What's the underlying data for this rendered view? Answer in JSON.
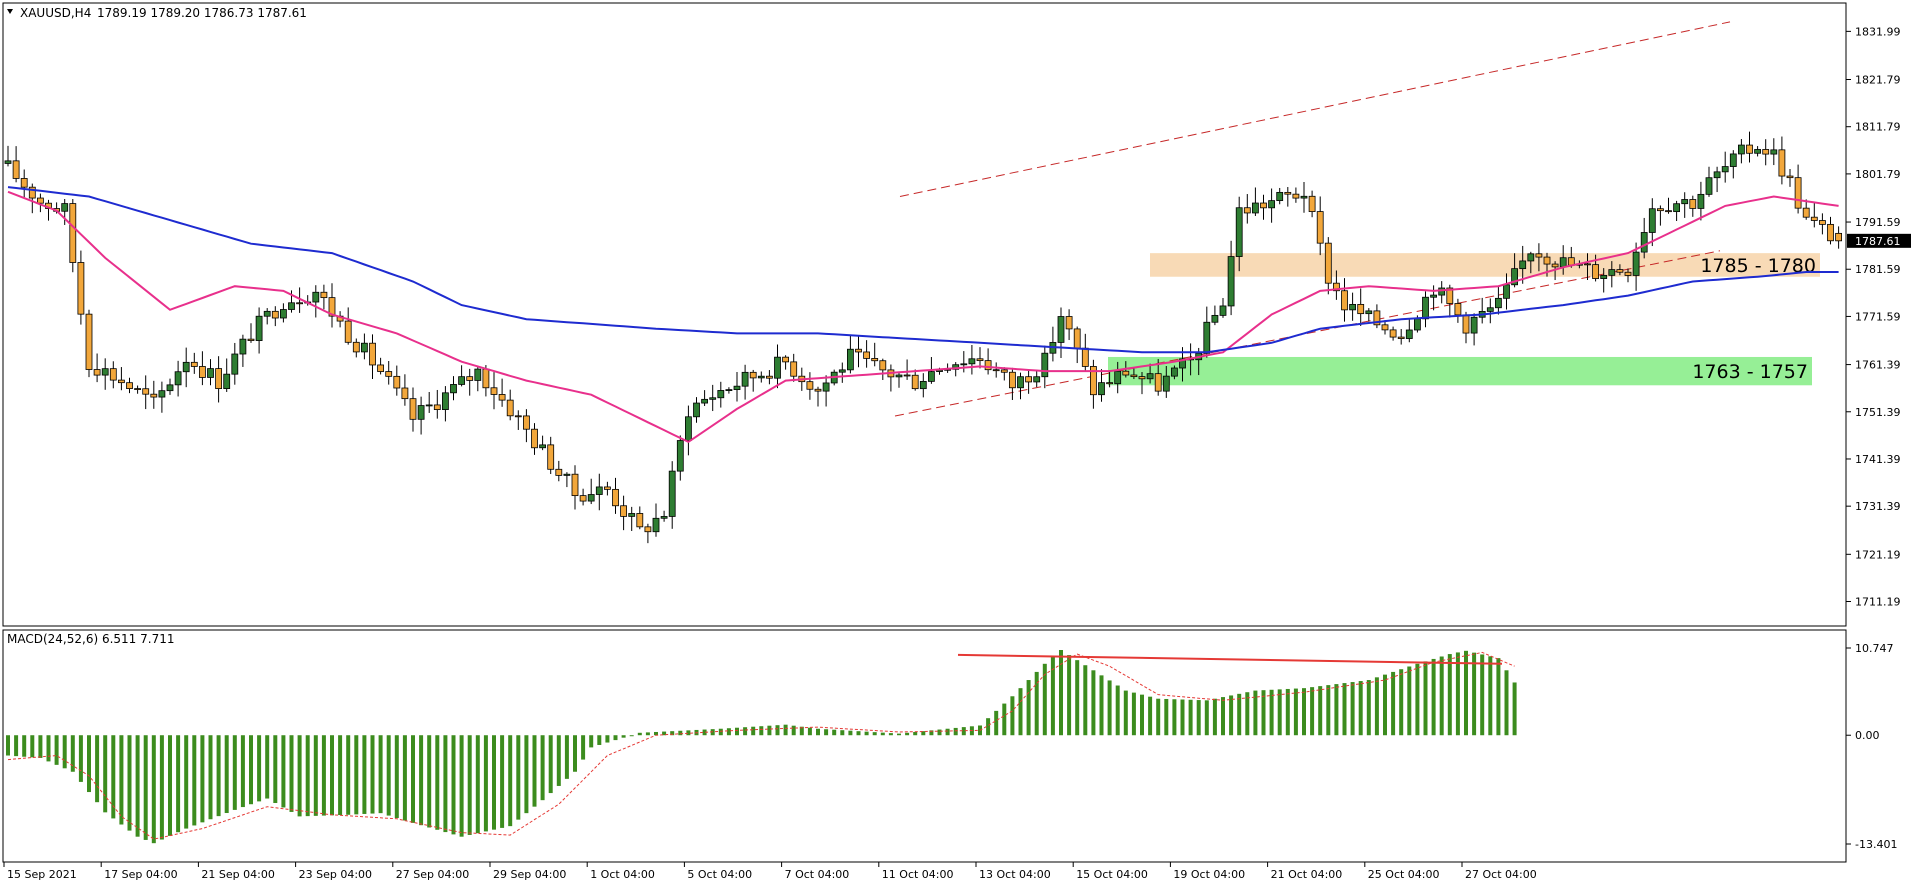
{
  "header": {
    "symbol": "XAUUSD,H4",
    "ohlc": "1789.19 1789.20 1786.73 1787.61",
    "macd_label": "MACD(24,52,6) 6.511 7.711"
  },
  "price_axis": {
    "ticks": [
      "1831.99",
      "1821.79",
      "1811.79",
      "1801.79",
      "1791.59",
      "1781.59",
      "1771.59",
      "1761.39",
      "1751.39",
      "1741.39",
      "1731.39",
      "1721.19",
      "1711.19"
    ],
    "current_price": "1787.61"
  },
  "macd_axis": {
    "ticks": [
      "10.747",
      "0.00",
      "-13.401"
    ]
  },
  "time_axis": {
    "labels": [
      "15 Sep 2021",
      "17 Sep 04:00",
      "21 Sep 04:00",
      "23 Sep 04:00",
      "27 Sep 04:00",
      "29 Sep 04:00",
      "1 Oct 04:00",
      "5 Oct 04:00",
      "7 Oct 04:00",
      "11 Oct 04:00",
      "13 Oct 04:00",
      "15 Oct 04:00",
      "19 Oct 04:00",
      "21 Oct 04:00",
      "25 Oct 04:00",
      "27 Oct 04:00"
    ]
  },
  "zones": [
    {
      "label": "1785 - 1780",
      "high": 1785,
      "low": 1780,
      "color": "#f8d8b2"
    },
    {
      "label": "1763 - 1757",
      "high": 1763,
      "low": 1757,
      "color": "#90ee90"
    }
  ],
  "colors": {
    "bull": "#2e7d32",
    "bear": "#f2a73b",
    "ma_fast": "#e8308c",
    "ma_slow": "#1e2bd0",
    "channel": "#c62828",
    "macd_hist": "#3c8c1e",
    "macd_signal": "#e53935",
    "divergence": "#e53935"
  },
  "chart_data": {
    "type": "candlestick",
    "symbol": "XAUUSD",
    "timeframe": "H4",
    "ylim": [
      1706,
      1838
    ],
    "anchors": [
      [
        0,
        1803
      ],
      [
        4,
        1796
      ],
      [
        7,
        1794
      ],
      [
        10,
        1762
      ],
      [
        14,
        1758
      ],
      [
        18,
        1753
      ],
      [
        22,
        1763
      ],
      [
        26,
        1758
      ],
      [
        30,
        1768
      ],
      [
        34,
        1775
      ],
      [
        38,
        1777
      ],
      [
        42,
        1768
      ],
      [
        46,
        1760
      ],
      [
        50,
        1750
      ],
      [
        54,
        1755
      ],
      [
        58,
        1760
      ],
      [
        62,
        1752
      ],
      [
        66,
        1743
      ],
      [
        70,
        1734
      ],
      [
        74,
        1735
      ],
      [
        78,
        1726
      ],
      [
        81,
        1730
      ],
      [
        84,
        1752
      ],
      [
        88,
        1756
      ],
      [
        92,
        1759
      ],
      [
        96,
        1762
      ],
      [
        100,
        1756
      ],
      [
        104,
        1763
      ],
      [
        108,
        1760
      ],
      [
        112,
        1758
      ],
      [
        116,
        1762
      ],
      [
        120,
        1763
      ],
      [
        124,
        1757
      ],
      [
        128,
        1762
      ],
      [
        130,
        1772
      ],
      [
        134,
        1756
      ],
      [
        138,
        1760
      ],
      [
        142,
        1757
      ],
      [
        146,
        1762
      ],
      [
        150,
        1775
      ],
      [
        152,
        1794
      ],
      [
        156,
        1796
      ],
      [
        160,
        1798
      ],
      [
        163,
        1780
      ],
      [
        165,
        1774
      ],
      [
        168,
        1771
      ],
      [
        172,
        1768
      ],
      [
        176,
        1778
      ],
      [
        180,
        1770
      ],
      [
        184,
        1774
      ],
      [
        188,
        1786
      ],
      [
        192,
        1783
      ],
      [
        196,
        1781
      ],
      [
        200,
        1782
      ],
      [
        203,
        1795
      ],
      [
        206,
        1796
      ],
      [
        208,
        1796
      ],
      [
        210,
        1800
      ],
      [
        212,
        1803
      ],
      [
        214,
        1806
      ],
      [
        216,
        1808
      ],
      [
        218,
        1806
      ],
      [
        220,
        1800
      ],
      [
        222,
        1792
      ],
      [
        224,
        1790
      ],
      [
        226,
        1787.61
      ]
    ],
    "ma_fast_anchors": [
      [
        0,
        1798
      ],
      [
        6,
        1794
      ],
      [
        12,
        1784
      ],
      [
        20,
        1773
      ],
      [
        28,
        1778
      ],
      [
        34,
        1777
      ],
      [
        40,
        1772
      ],
      [
        48,
        1768
      ],
      [
        56,
        1762
      ],
      [
        64,
        1758
      ],
      [
        72,
        1755
      ],
      [
        78,
        1750
      ],
      [
        84,
        1745
      ],
      [
        90,
        1752
      ],
      [
        96,
        1758
      ],
      [
        104,
        1759
      ],
      [
        112,
        1760
      ],
      [
        120,
        1761
      ],
      [
        128,
        1760
      ],
      [
        136,
        1760
      ],
      [
        144,
        1762
      ],
      [
        150,
        1764
      ],
      [
        156,
        1772
      ],
      [
        162,
        1777
      ],
      [
        168,
        1778
      ],
      [
        176,
        1777
      ],
      [
        184,
        1778
      ],
      [
        192,
        1782
      ],
      [
        200,
        1785
      ],
      [
        206,
        1790
      ],
      [
        212,
        1795
      ],
      [
        218,
        1797
      ],
      [
        226,
        1795
      ]
    ],
    "ma_slow_anchors": [
      [
        0,
        1799
      ],
      [
        10,
        1797
      ],
      [
        20,
        1792
      ],
      [
        30,
        1787
      ],
      [
        40,
        1785
      ],
      [
        50,
        1779
      ],
      [
        56,
        1774
      ],
      [
        64,
        1771
      ],
      [
        72,
        1770
      ],
      [
        80,
        1769
      ],
      [
        90,
        1768
      ],
      [
        100,
        1768
      ],
      [
        110,
        1767
      ],
      [
        120,
        1766
      ],
      [
        130,
        1765
      ],
      [
        140,
        1764
      ],
      [
        148,
        1764
      ],
      [
        156,
        1766
      ],
      [
        162,
        1769
      ],
      [
        172,
        1771
      ],
      [
        182,
        1772
      ],
      [
        192,
        1774
      ],
      [
        200,
        1776
      ],
      [
        208,
        1779
      ],
      [
        216,
        1780
      ],
      [
        222,
        1781
      ],
      [
        226,
        1781
      ]
    ],
    "macd": {
      "ylim": [
        -13.401,
        10.747
      ],
      "hist_anchors": [
        [
          0,
          -2.5
        ],
        [
          4,
          -2.8
        ],
        [
          8,
          -4.5
        ],
        [
          12,
          -9.5
        ],
        [
          16,
          -12.5
        ],
        [
          18,
          -13.3
        ],
        [
          22,
          -11.5
        ],
        [
          28,
          -9.2
        ],
        [
          32,
          -7.8
        ],
        [
          36,
          -10.0
        ],
        [
          42,
          -9.8
        ],
        [
          46,
          -9.6
        ],
        [
          50,
          -10.8
        ],
        [
          56,
          -12.5
        ],
        [
          62,
          -11.2
        ],
        [
          66,
          -8.0
        ],
        [
          70,
          -4.5
        ],
        [
          72,
          -1.5
        ],
        [
          78,
          0.3
        ],
        [
          88,
          0.8
        ],
        [
          96,
          1.3
        ],
        [
          100,
          0.8
        ],
        [
          110,
          0.2
        ],
        [
          120,
          1.2
        ],
        [
          124,
          4.8
        ],
        [
          128,
          8.8
        ],
        [
          130,
          10.5
        ],
        [
          134,
          8.0
        ],
        [
          138,
          5.5
        ],
        [
          142,
          4.5
        ],
        [
          148,
          4.3
        ],
        [
          154,
          5.5
        ],
        [
          160,
          5.8
        ],
        [
          168,
          6.8
        ],
        [
          174,
          8.8
        ],
        [
          178,
          10.0
        ],
        [
          180,
          10.4
        ],
        [
          184,
          9.5
        ],
        [
          186,
          6.5
        ]
      ],
      "signal_anchors": [
        [
          0,
          -3.0
        ],
        [
          6,
          -2.5
        ],
        [
          10,
          -5.0
        ],
        [
          14,
          -10.0
        ],
        [
          18,
          -12.8
        ],
        [
          24,
          -11.5
        ],
        [
          32,
          -8.8
        ],
        [
          40,
          -9.8
        ],
        [
          48,
          -10.3
        ],
        [
          56,
          -12.0
        ],
        [
          62,
          -12.3
        ],
        [
          68,
          -8.5
        ],
        [
          74,
          -2.5
        ],
        [
          80,
          0.0
        ],
        [
          90,
          0.6
        ],
        [
          100,
          1.0
        ],
        [
          110,
          0.4
        ],
        [
          120,
          0.6
        ],
        [
          124,
          3.0
        ],
        [
          128,
          7.5
        ],
        [
          132,
          10.0
        ],
        [
          136,
          8.5
        ],
        [
          142,
          5.0
        ],
        [
          150,
          4.3
        ],
        [
          160,
          5.3
        ],
        [
          170,
          6.8
        ],
        [
          176,
          9.0
        ],
        [
          182,
          10.2
        ],
        [
          186,
          8.5
        ]
      ]
    }
  }
}
